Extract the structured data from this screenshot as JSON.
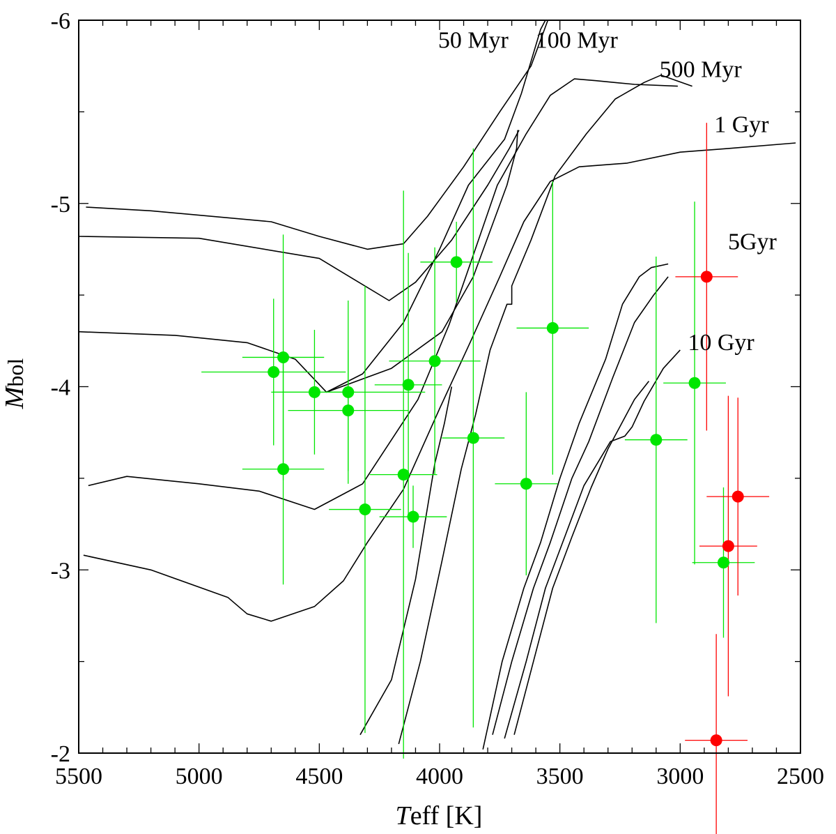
{
  "chart_data": {
    "type": "scatter",
    "title": "",
    "xlabel": {
      "italic": "T",
      "rest": "eff [K]"
    },
    "ylabel": {
      "italic": "M",
      "rest": "bol"
    },
    "xlim": [
      5500,
      2500
    ],
    "ylim": [
      -2,
      -6
    ],
    "xticks": [
      5500,
      5000,
      4500,
      4000,
      3500,
      3000,
      2500
    ],
    "yticks": [
      -2,
      -3,
      -4,
      -5,
      -6
    ],
    "xticks_minor_step": 100,
    "yticks_minor_step": 0.5,
    "isochrone_labels": [
      {
        "text": "50 Myr",
        "x": 3860,
        "y": -5.85
      },
      {
        "text": "100 Myr",
        "x": 3430,
        "y": -5.85
      },
      {
        "text": "500 Myr",
        "x": 2915,
        "y": -5.69
      },
      {
        "text": "1 Gyr",
        "x": 2745,
        "y": -5.39
      },
      {
        "text": "5Gyr",
        "x": 2700,
        "y": -4.75
      },
      {
        "text": "10 Gyr",
        "x": 2830,
        "y": -4.2
      }
    ],
    "isochrones": [
      {
        "name": "50 Myr",
        "points": [
          [
            5470,
            -4.98
          ],
          [
            5200,
            -4.96
          ],
          [
            4700,
            -4.9
          ],
          [
            4500,
            -4.82
          ],
          [
            4300,
            -4.75
          ],
          [
            4150,
            -4.78
          ],
          [
            4050,
            -4.93
          ],
          [
            3900,
            -5.2
          ],
          [
            3750,
            -5.5
          ],
          [
            3620,
            -5.75
          ],
          [
            3550,
            -6.0
          ]
        ]
      },
      {
        "name": "50 Myr loop",
        "points": [
          [
            5500,
            -4.82
          ],
          [
            5000,
            -4.81
          ],
          [
            4500,
            -4.7
          ],
          [
            4210,
            -4.47
          ],
          [
            4100,
            -4.57
          ],
          [
            3950,
            -4.8
          ],
          [
            3800,
            -5.1
          ],
          [
            3710,
            -5.3
          ],
          [
            3670,
            -5.4
          ]
        ]
      },
      {
        "name": "100 Myr",
        "points": [
          [
            5500,
            -4.3
          ],
          [
            5100,
            -4.28
          ],
          [
            4800,
            -4.24
          ],
          [
            4600,
            -4.15
          ],
          [
            4470,
            -3.97
          ],
          [
            4320,
            -4.07
          ],
          [
            4150,
            -4.35
          ],
          [
            4000,
            -4.75
          ],
          [
            3880,
            -5.1
          ],
          [
            3730,
            -5.35
          ],
          [
            3660,
            -5.6
          ],
          [
            3580,
            -5.95
          ],
          [
            3560,
            -6.0
          ]
        ]
      },
      {
        "name": "100 Myr inner",
        "points": [
          [
            4470,
            -3.97
          ],
          [
            4200,
            -4.1
          ],
          [
            3990,
            -4.3
          ],
          [
            3860,
            -4.6
          ],
          [
            3720,
            -5.1
          ],
          [
            3680,
            -5.3
          ],
          [
            3675,
            -5.4
          ]
        ]
      },
      {
        "name": "500 Myr",
        "points": [
          [
            5460,
            -3.46
          ],
          [
            5300,
            -3.51
          ],
          [
            5000,
            -3.47
          ],
          [
            4750,
            -3.43
          ],
          [
            4520,
            -3.33
          ],
          [
            4320,
            -3.47
          ],
          [
            4090,
            -3.93
          ],
          [
            3960,
            -4.34
          ],
          [
            3870,
            -4.68
          ],
          [
            3760,
            -5.1
          ],
          [
            3640,
            -5.38
          ],
          [
            3540,
            -5.59
          ],
          [
            3440,
            -5.68
          ],
          [
            3350,
            -5.67
          ],
          [
            3190,
            -5.65
          ],
          [
            3010,
            -5.64
          ]
        ]
      },
      {
        "name": "500 Myr lower",
        "points": [
          [
            4330,
            -2.1
          ],
          [
            4200,
            -2.4
          ],
          [
            4100,
            -2.95
          ],
          [
            4020,
            -3.58
          ],
          [
            3980,
            -3.8
          ],
          [
            3950,
            -4.0
          ]
        ]
      },
      {
        "name": "1 Gyr",
        "points": [
          [
            5480,
            -3.08
          ],
          [
            5200,
            -3.0
          ],
          [
            4880,
            -2.85
          ],
          [
            4800,
            -2.76
          ],
          [
            4700,
            -2.72
          ],
          [
            4520,
            -2.8
          ],
          [
            4400,
            -2.94
          ],
          [
            4300,
            -3.15
          ],
          [
            4150,
            -3.44
          ],
          [
            4000,
            -3.88
          ],
          [
            3870,
            -4.25
          ],
          [
            3750,
            -4.6
          ],
          [
            3650,
            -4.9
          ],
          [
            3540,
            -5.12
          ],
          [
            3420,
            -5.2
          ],
          [
            3220,
            -5.22
          ],
          [
            3000,
            -5.28
          ],
          [
            2800,
            -5.3
          ],
          [
            2520,
            -5.33
          ]
        ]
      },
      {
        "name": "1 Gyr lower",
        "points": [
          [
            4170,
            -2.05
          ],
          [
            4080,
            -2.5
          ],
          [
            3990,
            -3.05
          ],
          [
            3910,
            -3.55
          ],
          [
            3850,
            -3.85
          ],
          [
            3790,
            -4.2
          ],
          [
            3720,
            -4.45
          ],
          [
            3700,
            -4.45
          ],
          [
            3700,
            -4.55
          ],
          [
            3620,
            -4.8
          ],
          [
            3520,
            -5.15
          ],
          [
            3390,
            -5.38
          ],
          [
            3270,
            -5.57
          ],
          [
            3150,
            -5.66
          ],
          [
            3080,
            -5.7
          ],
          [
            2950,
            -5.64
          ]
        ]
      },
      {
        "name": "5Gyr",
        "points": [
          [
            3820,
            -2.02
          ],
          [
            3740,
            -2.5
          ],
          [
            3650,
            -2.9
          ],
          [
            3580,
            -3.15
          ],
          [
            3500,
            -3.5
          ],
          [
            3420,
            -3.8
          ],
          [
            3310,
            -4.15
          ],
          [
            3240,
            -4.45
          ],
          [
            3170,
            -4.6
          ],
          [
            3120,
            -4.65
          ],
          [
            3050,
            -4.67
          ]
        ]
      },
      {
        "name": "5Gyr lower",
        "points": [
          [
            3780,
            -2.1
          ],
          [
            3700,
            -2.5
          ],
          [
            3610,
            -2.9
          ],
          [
            3540,
            -3.15
          ],
          [
            3450,
            -3.5
          ],
          [
            3380,
            -3.7
          ],
          [
            3280,
            -4.05
          ],
          [
            3190,
            -4.35
          ],
          [
            3110,
            -4.5
          ],
          [
            3050,
            -4.6
          ]
        ]
      },
      {
        "name": "10 Gyr",
        "points": [
          [
            3730,
            -2.08
          ],
          [
            3640,
            -2.5
          ],
          [
            3560,
            -2.9
          ],
          [
            3480,
            -3.18
          ],
          [
            3400,
            -3.46
          ],
          [
            3290,
            -3.7
          ],
          [
            3230,
            -3.73
          ],
          [
            3200,
            -3.78
          ],
          [
            3150,
            -3.92
          ],
          [
            3070,
            -4.1
          ],
          [
            3000,
            -4.2
          ]
        ]
      },
      {
        "name": "10 Gyr lower",
        "points": [
          [
            3690,
            -2.1
          ],
          [
            3610,
            -2.5
          ],
          [
            3530,
            -2.9
          ],
          [
            3450,
            -3.18
          ],
          [
            3370,
            -3.45
          ],
          [
            3300,
            -3.66
          ],
          [
            3190,
            -3.93
          ],
          [
            3130,
            -4.03
          ]
        ]
      }
    ],
    "series": [
      {
        "name": "green",
        "color": "#00e600",
        "points": [
          {
            "x": 4690,
            "y": -4.08,
            "xerr": 300,
            "yerr": 0.4
          },
          {
            "x": 4650,
            "y": -4.16,
            "xerr": 170,
            "yerr": 0.67
          },
          {
            "x": 4650,
            "y": -3.55,
            "xerr": 170,
            "yerr": 0.63
          },
          {
            "x": 4520,
            "y": -3.97,
            "xerr": 170,
            "yerr": 0.34
          },
          {
            "x": 4380,
            "y": -3.97,
            "xerr": 320,
            "yerr": 0.5
          },
          {
            "x": 4380,
            "y": -3.87,
            "xerr": 250,
            "yerr": 0.33
          },
          {
            "x": 4310,
            "y": -3.33,
            "xerr": 150,
            "yerr": 1.22
          },
          {
            "x": 4150,
            "y": -3.52,
            "xerr": 140,
            "yerr": 1.55
          },
          {
            "x": 4130,
            "y": -4.01,
            "xerr": 140,
            "yerr": 0.72
          },
          {
            "x": 4110,
            "y": -3.29,
            "xerr": 140,
            "yerr": 0.17
          },
          {
            "x": 4020,
            "y": -4.14,
            "xerr": 190,
            "yerr": 0.62
          },
          {
            "x": 3930,
            "y": -4.68,
            "xerr": 150,
            "yerr": 0.22
          },
          {
            "x": 3860,
            "y": -3.72,
            "xerr": 130,
            "yerr": 1.58
          },
          {
            "x": 3640,
            "y": -3.47,
            "xerr": 130,
            "yerr": 0.5
          },
          {
            "x": 3530,
            "y": -4.32,
            "xerr": 150,
            "yerr": 0.8
          },
          {
            "x": 3100,
            "y": -3.71,
            "xerr": 130,
            "yerr": 1.0
          },
          {
            "x": 2940,
            "y": -4.02,
            "xerr": 130,
            "yerr": 0.99
          },
          {
            "x": 2820,
            "y": -3.04,
            "xerr": 130,
            "yerr": 0.41
          }
        ]
      },
      {
        "name": "red",
        "color": "#ff0000",
        "points": [
          {
            "x": 2890,
            "y": -4.6,
            "xerr": 130,
            "yerr": 0.84
          },
          {
            "x": 2760,
            "y": -3.4,
            "xerr": 130,
            "yerr": 0.54
          },
          {
            "x": 2800,
            "y": -3.13,
            "xerr": 120,
            "yerr": 0.82
          },
          {
            "x": 2850,
            "y": -2.07,
            "xerr": 130,
            "yerr": 0.58
          }
        ]
      }
    ]
  }
}
